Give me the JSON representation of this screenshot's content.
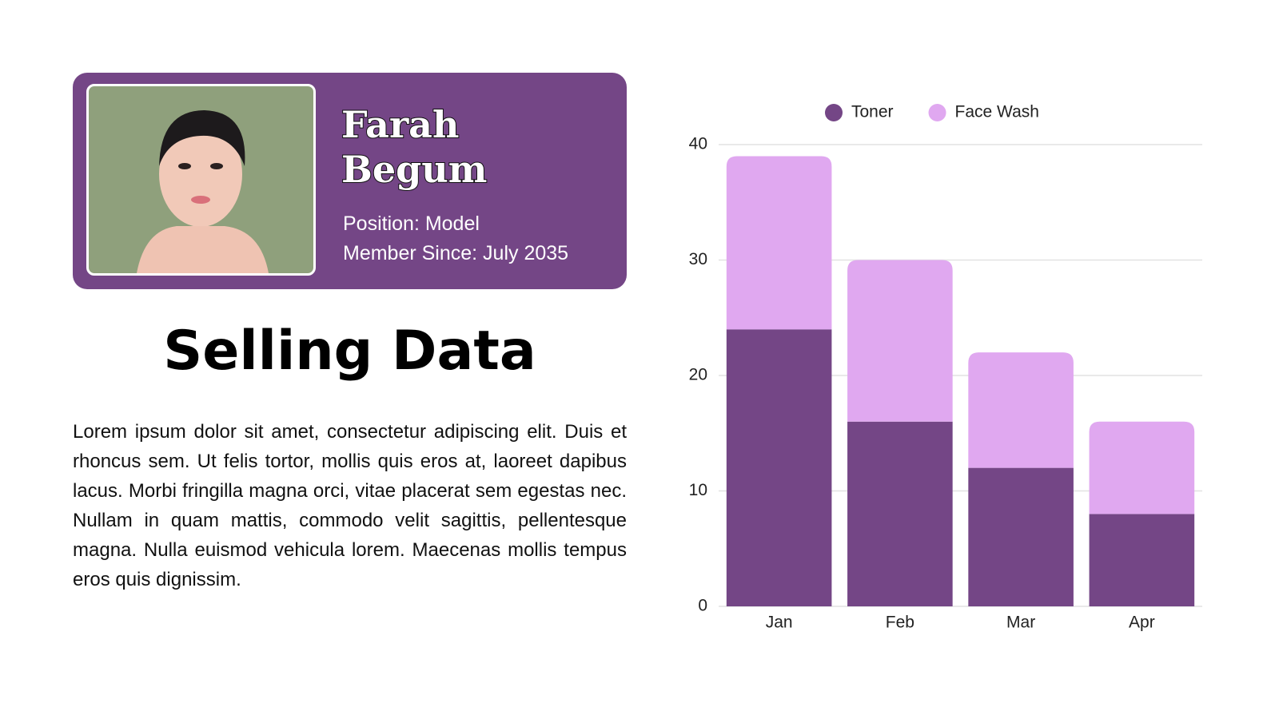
{
  "profile": {
    "name_lines": [
      "Farah",
      "Begum"
    ],
    "position": "Position: Model",
    "member_since": "Member Since: July 2035"
  },
  "heading": "Selling Data",
  "paragraph": "Lorem ipsum dolor sit amet, consectetur adipiscing elit. Duis et rhoncus sem. Ut felis tortor, mollis quis eros at, laoreet dapibus lacus. Morbi fringilla magna orci, vitae placerat sem egestas nec. Nullam in quam mattis, commodo velit sagittis, pellentesque magna. Nulla euismod vehicula lorem. Maecenas mollis tempus eros quis dignissim.",
  "chart_data": {
    "type": "bar",
    "stacked": true,
    "categories": [
      "Jan",
      "Feb",
      "Mar",
      "Apr"
    ],
    "series": [
      {
        "name": "Toner",
        "color": "#744686",
        "values": [
          24,
          16,
          12,
          8
        ]
      },
      {
        "name": "Face Wash",
        "color": "#e0a8f0",
        "values": [
          15,
          14,
          10,
          8
        ]
      }
    ],
    "ylim": [
      0,
      40
    ],
    "yticks": [
      0,
      10,
      20,
      30,
      40
    ],
    "grid": true,
    "legend": "top"
  }
}
